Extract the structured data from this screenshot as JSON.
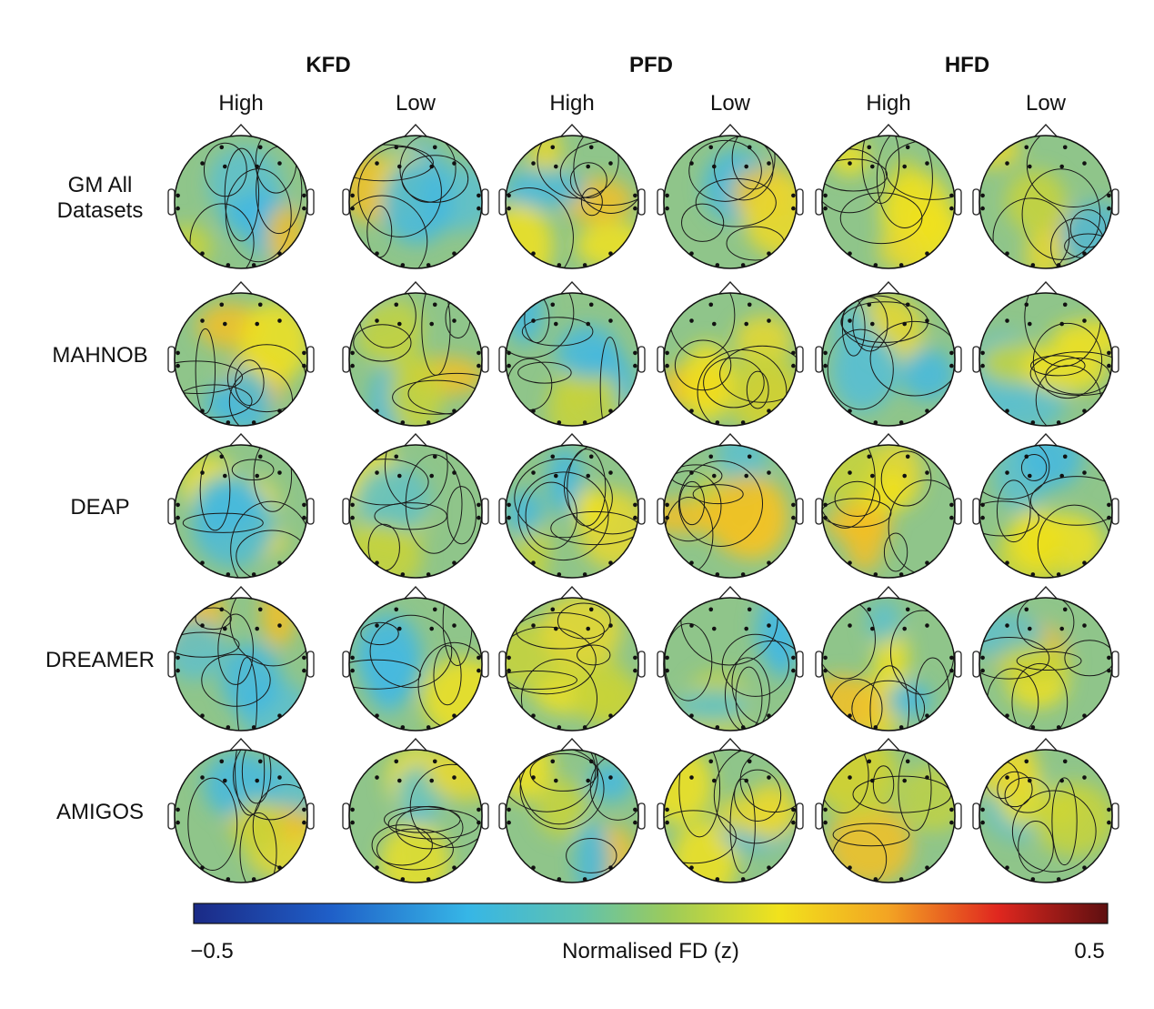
{
  "groups": [
    {
      "title": "KFD",
      "conditions": [
        "High",
        "Low"
      ]
    },
    {
      "title": "PFD",
      "conditions": [
        "High",
        "Low"
      ]
    },
    {
      "title": "HFD",
      "conditions": [
        "High",
        "Low"
      ]
    }
  ],
  "rows": [
    "GM All Datasets",
    "MAHNOB",
    "DEAP",
    "DREAMER",
    "AMIGOS"
  ],
  "colorbar": {
    "label": "Normalised FD (z)",
    "clim": [
      -0.5,
      0.5
    ],
    "ticks": [
      {
        "value": -0.5,
        "label": "−0.5"
      },
      0.5
    ]
  }
}
